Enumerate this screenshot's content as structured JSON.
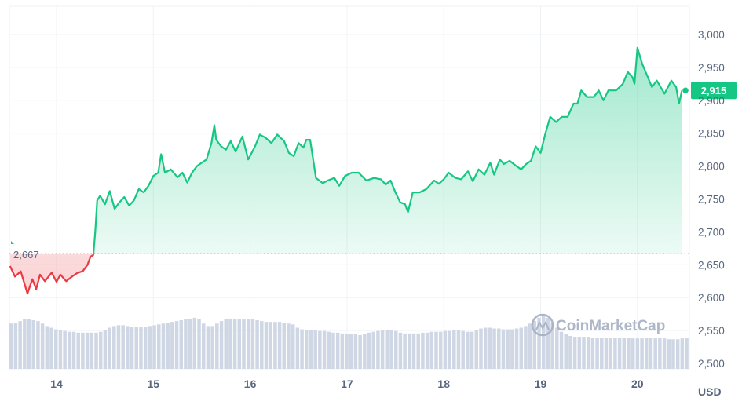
{
  "chart_data": {
    "type": "line",
    "unit": "USD",
    "baseline_label": "2,667",
    "baseline_value": 2667,
    "current_label": "2,915",
    "current_value": 2915,
    "watermark": "CoinMarketCap",
    "ylim": [
      2500,
      3020
    ],
    "y_ticks": [
      "3,000",
      "2,950",
      "2,900",
      "2,850",
      "2,800",
      "2,750",
      "2,700",
      "2,650",
      "2,600",
      "2,550",
      "2,500"
    ],
    "y_tick_values": [
      3000,
      2950,
      2900,
      2850,
      2800,
      2750,
      2700,
      2650,
      2600,
      2550,
      2500
    ],
    "xlim": [
      13.45,
      20.5
    ],
    "x_ticks": [
      "14",
      "15",
      "16",
      "17",
      "18",
      "19",
      "20"
    ],
    "x_tick_values": [
      14,
      15,
      16,
      17,
      18,
      19,
      20
    ],
    "grid": true,
    "colors": {
      "up": "#16c784",
      "down": "#ea3943",
      "volume": "#cfd6e4",
      "grid": "#eff2f5"
    },
    "series": [
      {
        "x": [
          13.52,
          13.57,
          13.63,
          13.7,
          13.75,
          13.79,
          13.83,
          13.88,
          13.95,
          14.0,
          14.04,
          14.1,
          14.16,
          14.22,
          14.27,
          14.32,
          14.35,
          14.38,
          14.4,
          14.42,
          14.45,
          14.5,
          14.55,
          14.6,
          14.65,
          14.7,
          14.75,
          14.8,
          14.85,
          14.9,
          14.95,
          15.0,
          15.05,
          15.08,
          15.12,
          15.18,
          15.25,
          15.3,
          15.35,
          15.4,
          15.45,
          15.5,
          15.55,
          15.6,
          15.63,
          15.65,
          15.7,
          15.75,
          15.8,
          15.85,
          15.92,
          15.98,
          16.05,
          16.1,
          16.16,
          16.22,
          16.28,
          16.35,
          16.4,
          16.45,
          16.5,
          16.55,
          16.58,
          16.62,
          16.68,
          16.75,
          16.8,
          16.87,
          16.92,
          16.98,
          17.05,
          17.12,
          17.2,
          17.28,
          17.35,
          17.4,
          17.45,
          17.5,
          17.55,
          17.6,
          17.63,
          17.68,
          17.75,
          17.82,
          17.9,
          17.95,
          18.0,
          18.05,
          18.12,
          18.18,
          18.25,
          18.3,
          18.36,
          18.42,
          18.48,
          18.52,
          18.58,
          18.62,
          18.68,
          18.75,
          18.8,
          18.85,
          18.9,
          18.95,
          19.0,
          19.05,
          19.1,
          19.16,
          19.22,
          19.28,
          19.34,
          19.38,
          19.42,
          19.48,
          19.55,
          19.6,
          19.65,
          19.7,
          19.78,
          19.85,
          19.9,
          19.95,
          19.97,
          20.0,
          20.05,
          20.1,
          20.15,
          20.2,
          20.28,
          20.35,
          20.4,
          20.43,
          20.46
        ],
        "values": [
          2648,
          2632,
          2640,
          2606,
          2628,
          2613,
          2635,
          2625,
          2638,
          2624,
          2635,
          2625,
          2632,
          2638,
          2640,
          2650,
          2662,
          2665,
          2700,
          2748,
          2755,
          2742,
          2762,
          2735,
          2745,
          2753,
          2740,
          2748,
          2765,
          2760,
          2770,
          2785,
          2790,
          2818,
          2790,
          2795,
          2783,
          2790,
          2775,
          2790,
          2800,
          2805,
          2810,
          2835,
          2862,
          2840,
          2830,
          2825,
          2838,
          2822,
          2845,
          2810,
          2830,
          2848,
          2843,
          2835,
          2848,
          2838,
          2820,
          2815,
          2835,
          2828,
          2840,
          2840,
          2782,
          2774,
          2778,
          2782,
          2770,
          2785,
          2790,
          2790,
          2778,
          2782,
          2780,
          2772,
          2778,
          2760,
          2745,
          2742,
          2730,
          2760,
          2760,
          2765,
          2778,
          2773,
          2780,
          2790,
          2782,
          2780,
          2792,
          2777,
          2795,
          2787,
          2805,
          2787,
          2810,
          2803,
          2808,
          2800,
          2795,
          2803,
          2808,
          2830,
          2820,
          2850,
          2875,
          2867,
          2875,
          2875,
          2895,
          2895,
          2915,
          2905,
          2905,
          2915,
          2900,
          2915,
          2915,
          2925,
          2943,
          2935,
          2925,
          2980,
          2955,
          2938,
          2920,
          2930,
          2910,
          2930,
          2920,
          2895,
          2915
        ]
      }
    ],
    "volume": [
      0.55,
      0.56,
      0.58,
      0.6,
      0.6,
      0.59,
      0.58,
      0.55,
      0.52,
      0.5,
      0.48,
      0.47,
      0.46,
      0.45,
      0.45,
      0.44,
      0.44,
      0.44,
      0.44,
      0.44,
      0.45,
      0.47,
      0.5,
      0.52,
      0.53,
      0.53,
      0.52,
      0.51,
      0.51,
      0.51,
      0.51,
      0.52,
      0.53,
      0.54,
      0.55,
      0.56,
      0.57,
      0.58,
      0.59,
      0.6,
      0.6,
      0.62,
      0.6,
      0.55,
      0.52,
      0.52,
      0.55,
      0.58,
      0.6,
      0.61,
      0.61,
      0.6,
      0.6,
      0.6,
      0.6,
      0.59,
      0.58,
      0.57,
      0.57,
      0.57,
      0.57,
      0.56,
      0.55,
      0.54,
      0.5,
      0.48,
      0.47,
      0.47,
      0.47,
      0.46,
      0.46,
      0.45,
      0.44,
      0.44,
      0.43,
      0.42,
      0.42,
      0.42,
      0.41,
      0.42,
      0.44,
      0.45,
      0.46,
      0.47,
      0.47,
      0.47,
      0.46,
      0.44,
      0.43,
      0.43,
      0.43,
      0.43,
      0.44,
      0.44,
      0.45,
      0.45,
      0.45,
      0.46,
      0.46,
      0.47,
      0.47,
      0.46,
      0.45,
      0.45,
      0.47,
      0.49,
      0.5,
      0.5,
      0.49,
      0.49,
      0.48,
      0.48,
      0.48,
      0.49,
      0.5,
      0.52,
      0.55,
      0.58,
      0.62,
      0.64,
      0.62,
      0.56,
      0.5,
      0.45,
      0.42,
      0.4,
      0.39,
      0.39,
      0.39,
      0.39,
      0.38,
      0.38,
      0.38,
      0.38,
      0.38,
      0.38,
      0.38,
      0.38,
      0.38,
      0.37,
      0.37,
      0.37,
      0.38,
      0.38,
      0.38,
      0.38,
      0.37,
      0.36,
      0.36,
      0.36,
      0.37,
      0.38
    ]
  }
}
